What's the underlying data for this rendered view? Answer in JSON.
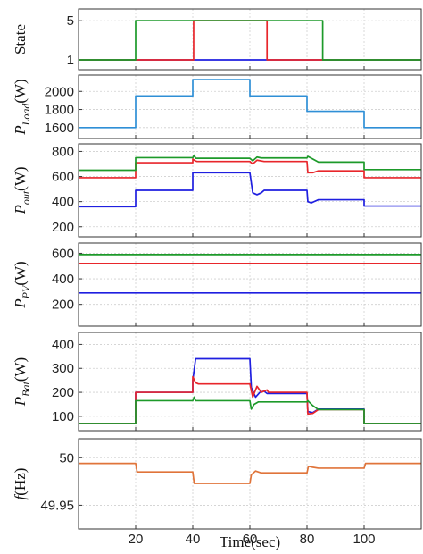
{
  "chart_data": {
    "type": "line",
    "xlabel": "Time(sec)",
    "xlim": [
      0,
      120
    ],
    "xticks": [
      "20",
      "40",
      "60",
      "80",
      "100"
    ],
    "colors": {
      "blue": "#1f1fe0",
      "red": "#e8262b",
      "green": "#1d9a2a",
      "lightblue": "#2f8fd6",
      "orange": "#e0743a"
    },
    "panels": [
      {
        "ylabel_main": "State",
        "ylabel_sub": "",
        "ylabel_unit": "",
        "ylim": [
          0,
          6.2
        ],
        "yticks": [
          "1",
          "5"
        ],
        "series": [
          {
            "color": "#1f1fe0",
            "points": [
              [
                0,
                1
              ],
              [
                120,
                1
              ]
            ]
          },
          {
            "color": "#e8262b",
            "points": [
              [
                0,
                1
              ],
              [
                40.3,
                1
              ],
              [
                40.3,
                5
              ],
              [
                66,
                5
              ],
              [
                66,
                1
              ],
              [
                120,
                1
              ]
            ]
          },
          {
            "color": "#1d9a2a",
            "points": [
              [
                0,
                1
              ],
              [
                20,
                1
              ],
              [
                20,
                5
              ],
              [
                85.5,
                5
              ],
              [
                85.5,
                1
              ],
              [
                120,
                1
              ]
            ]
          }
        ]
      },
      {
        "ylabel_main": "P",
        "ylabel_sub": "Load",
        "ylabel_unit": "(W)",
        "ylim": [
          1480,
          2180
        ],
        "yticks": [
          "1600",
          "1800",
          "2000"
        ],
        "series": [
          {
            "color": "#2f8fd6",
            "points": [
              [
                0,
                1600
              ],
              [
                20,
                1600
              ],
              [
                20,
                1950
              ],
              [
                40,
                1950
              ],
              [
                40,
                2130
              ],
              [
                60,
                2130
              ],
              [
                60,
                1950
              ],
              [
                80,
                1950
              ],
              [
                80,
                1780
              ],
              [
                100,
                1780
              ],
              [
                100,
                1600
              ],
              [
                120,
                1600
              ]
            ]
          }
        ]
      },
      {
        "ylabel_main": "P",
        "ylabel_sub": "out",
        "ylabel_unit": "(W)",
        "ylim": [
          120,
          860
        ],
        "yticks": [
          "200",
          "400",
          "600",
          "800"
        ],
        "series": [
          {
            "color": "#1f1fe0",
            "points": [
              [
                0,
                360
              ],
              [
                20,
                360
              ],
              [
                20,
                490
              ],
              [
                40,
                490
              ],
              [
                40,
                630
              ],
              [
                60,
                630
              ],
              [
                61,
                470
              ],
              [
                62.5,
                455
              ],
              [
                64,
                470
              ],
              [
                65,
                490
              ],
              [
                80,
                490
              ],
              [
                80.3,
                400
              ],
              [
                81.5,
                390
              ],
              [
                82.5,
                400
              ],
              [
                84,
                415
              ],
              [
                100,
                415
              ],
              [
                100,
                365
              ],
              [
                120,
                365
              ]
            ]
          },
          {
            "color": "#e8262b",
            "points": [
              [
                0,
                590
              ],
              [
                20,
                590
              ],
              [
                20,
                710
              ],
              [
                40,
                710
              ],
              [
                40,
                740
              ],
              [
                40.8,
                725
              ],
              [
                41.5,
                720
              ],
              [
                60,
                720
              ],
              [
                61,
                700
              ],
              [
                62.5,
                730
              ],
              [
                65,
                720
              ],
              [
                80,
                720
              ],
              [
                80.3,
                630
              ],
              [
                82,
                630
              ],
              [
                84,
                645
              ],
              [
                100,
                645
              ],
              [
                100,
                590
              ],
              [
                120,
                590
              ]
            ]
          },
          {
            "color": "#1d9a2a",
            "points": [
              [
                0,
                650
              ],
              [
                20,
                650
              ],
              [
                20,
                750
              ],
              [
                40,
                750
              ],
              [
                40.5,
                770
              ],
              [
                41,
                745
              ],
              [
                60,
                745
              ],
              [
                61,
                725
              ],
              [
                62.5,
                755
              ],
              [
                64,
                748
              ],
              [
                80,
                748
              ],
              [
                80.3,
                760
              ],
              [
                82,
                740
              ],
              [
                84,
                715
              ],
              [
                100,
                715
              ],
              [
                100,
                655
              ],
              [
                120,
                655
              ]
            ]
          }
        ]
      },
      {
        "ylabel_main": "P",
        "ylabel_sub": "PV",
        "ylabel_unit": "(W)",
        "ylim": [
          30,
          680
        ],
        "yticks": [
          "200",
          "400",
          "600"
        ],
        "series": [
          {
            "color": "#1f1fe0",
            "points": [
              [
                0,
                290
              ],
              [
                120,
                290
              ]
            ]
          },
          {
            "color": "#e8262b",
            "points": [
              [
                0,
                520
              ],
              [
                120,
                520
              ]
            ]
          },
          {
            "color": "#1d9a2a",
            "points": [
              [
                0,
                590
              ],
              [
                120,
                590
              ]
            ]
          }
        ]
      },
      {
        "ylabel_main": "P",
        "ylabel_sub": "Bat",
        "ylabel_unit": "(W)",
        "ylim": [
          40,
          450
        ],
        "yticks": [
          "100",
          "200",
          "300",
          "400"
        ],
        "series": [
          {
            "color": "#1f1fe0",
            "points": [
              [
                0,
                70
              ],
              [
                20,
                70
              ],
              [
                20,
                200
              ],
              [
                40,
                200
              ],
              [
                40,
                250
              ],
              [
                41,
                340
              ],
              [
                60,
                340
              ],
              [
                60.5,
                220
              ],
              [
                62,
                180
              ],
              [
                63.5,
                200
              ],
              [
                65,
                205
              ],
              [
                66,
                195
              ],
              [
                80,
                195
              ],
              [
                80.3,
                120
              ],
              [
                82,
                115
              ],
              [
                84,
                130
              ],
              [
                100,
                130
              ],
              [
                100,
                70
              ],
              [
                120,
                70
              ]
            ]
          },
          {
            "color": "#e8262b",
            "points": [
              [
                0,
                70
              ],
              [
                20,
                70
              ],
              [
                20,
                200
              ],
              [
                40,
                200
              ],
              [
                40,
                265
              ],
              [
                41,
                240
              ],
              [
                42,
                235
              ],
              [
                60,
                235
              ],
              [
                61,
                180
              ],
              [
                62.5,
                225
              ],
              [
                64,
                200
              ],
              [
                66,
                210
              ],
              [
                66.5,
                200
              ],
              [
                80,
                200
              ],
              [
                80.3,
                110
              ],
              [
                82,
                112
              ],
              [
                84,
                128
              ],
              [
                100,
                128
              ],
              [
                100,
                70
              ],
              [
                120,
                70
              ]
            ]
          },
          {
            "color": "#1d9a2a",
            "points": [
              [
                0,
                70
              ],
              [
                20,
                70
              ],
              [
                20,
                165
              ],
              [
                40,
                165
              ],
              [
                40.5,
                180
              ],
              [
                41,
                165
              ],
              [
                60,
                165
              ],
              [
                60.5,
                130
              ],
              [
                61.5,
                150
              ],
              [
                63,
                160
              ],
              [
                80,
                160
              ],
              [
                80.3,
                165
              ],
              [
                82,
                145
              ],
              [
                84,
                128
              ],
              [
                100,
                128
              ],
              [
                100,
                70
              ],
              [
                120,
                70
              ]
            ]
          }
        ]
      },
      {
        "ylabel_main": "f",
        "ylabel_sub": "",
        "ylabel_unit": "(Hz)",
        "ylim": [
          49.925,
          50.02
        ],
        "yticks": [
          "49.95",
          "50"
        ],
        "series": [
          {
            "color": "#e0743a",
            "points": [
              [
                0,
                49.994
              ],
              [
                20,
                49.994
              ],
              [
                20.5,
                49.985
              ],
              [
                40,
                49.985
              ],
              [
                40.5,
                49.973
              ],
              [
                60,
                49.973
              ],
              [
                60.5,
                49.982
              ],
              [
                62,
                49.986
              ],
              [
                64,
                49.984
              ],
              [
                80,
                49.984
              ],
              [
                80.5,
                49.991
              ],
              [
                82,
                49.99
              ],
              [
                84,
                49.989
              ],
              [
                100,
                49.989
              ],
              [
                100.5,
                49.994
              ],
              [
                120,
                49.994
              ]
            ]
          }
        ]
      }
    ]
  }
}
